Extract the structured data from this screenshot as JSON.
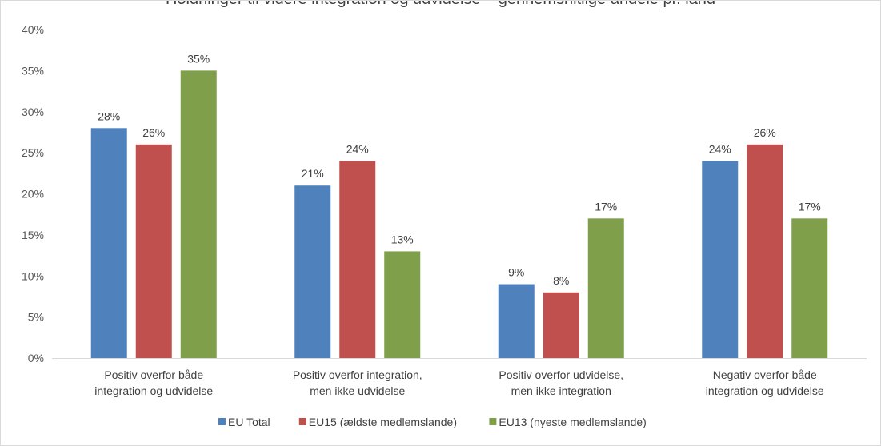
{
  "chart_data": {
    "type": "bar",
    "title": "Holdninger til videre integration og udvidelse – gennemsnitlige andele pr. land",
    "categories": [
      [
        "Positiv overfor både",
        "integration og udvidelse"
      ],
      [
        "Positiv overfor integration,",
        "men ikke udvidelse"
      ],
      [
        "Positiv overfor udvidelse,",
        "men ikke integration"
      ],
      [
        "Negativ overfor både",
        "integration og udvidelse"
      ]
    ],
    "series": [
      {
        "name": "EU Total",
        "color": "#4f81bd",
        "values": [
          28,
          21,
          9,
          24
        ]
      },
      {
        "name": "EU15 (ældste medlemslande)",
        "color": "#c0504d",
        "values": [
          26,
          24,
          8,
          26
        ]
      },
      {
        "name": "EU13 (nyeste medlemslande)",
        "color": "#7f9f4a",
        "values": [
          35,
          13,
          17,
          17
        ]
      }
    ],
    "ylim": [
      0,
      40
    ],
    "yticks": [
      0,
      5,
      10,
      15,
      20,
      25,
      30,
      35,
      40
    ],
    "value_suffix": "%",
    "grid": false,
    "legend_position": "bottom"
  }
}
